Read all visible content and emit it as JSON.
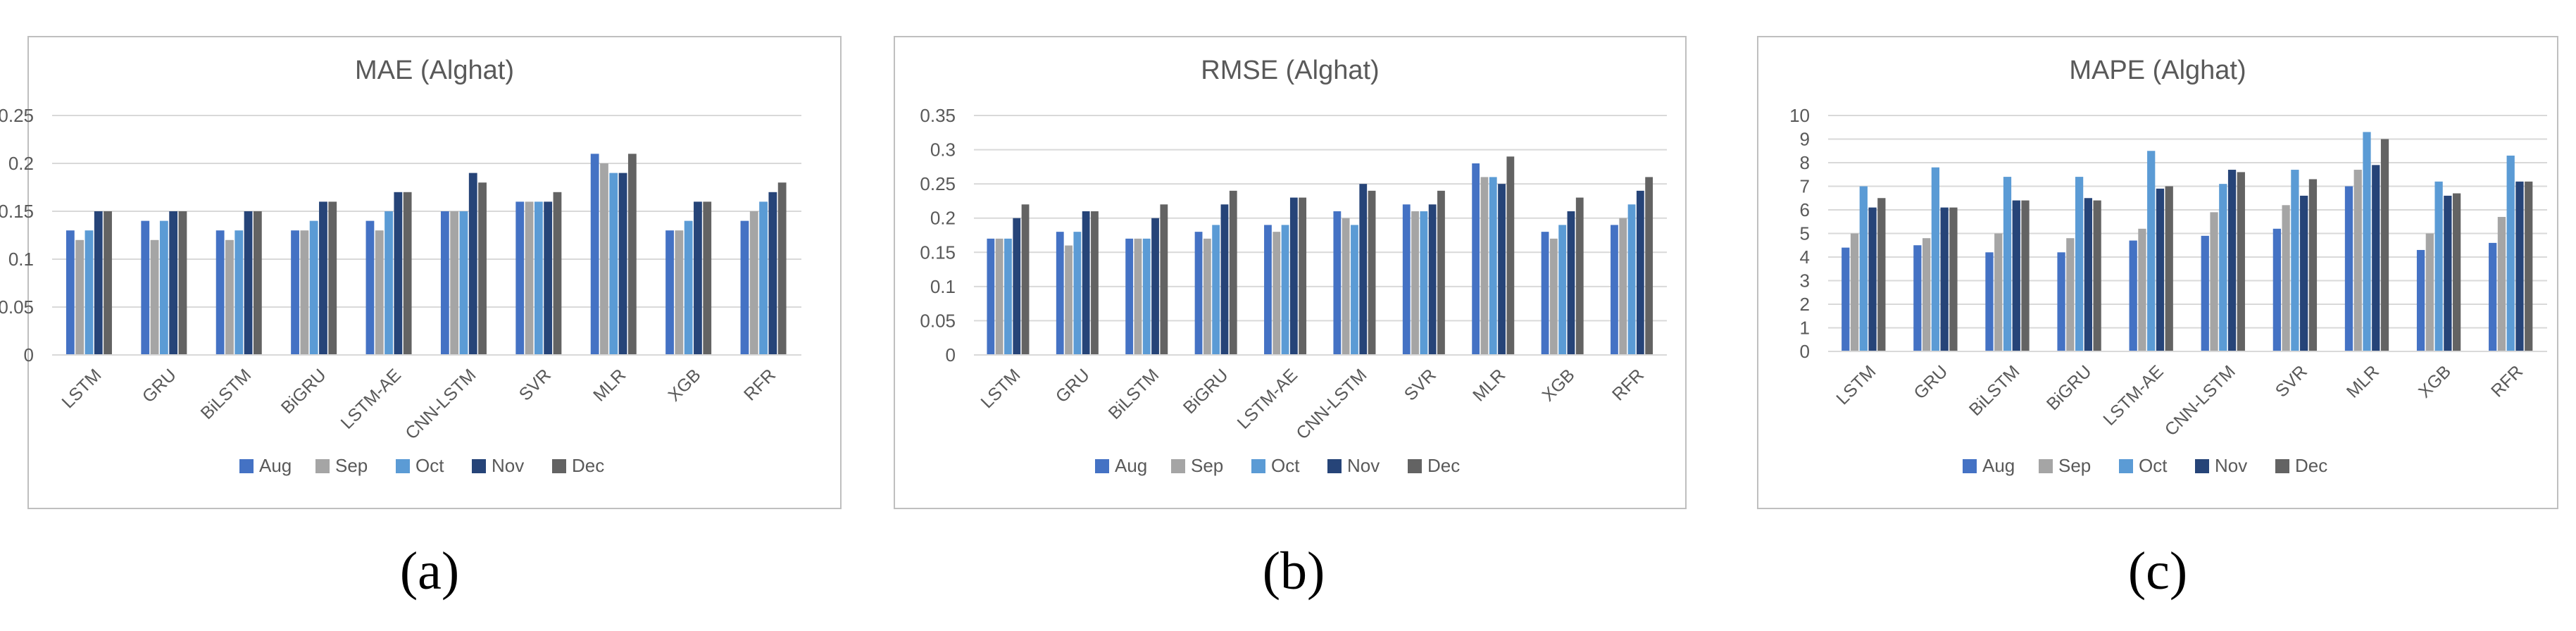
{
  "colors": {
    "Aug": "#4472C4",
    "Sep": "#A5A5A5",
    "Oct": "#5B9BD5",
    "Nov": "#264478",
    "Dec": "#636363",
    "grid": "#D9D9D9",
    "frame": "#BFBFBF",
    "text": "#595959"
  },
  "chart_data": [
    {
      "type": "bar",
      "title": "MAE (Alghat)",
      "caption": "(a)",
      "categories": [
        "LSTM",
        "GRU",
        "BiLSTM",
        "BiGRU",
        "LSTM-AE",
        "CNN-LSTM",
        "SVR",
        "MLR",
        "XGB",
        "RFR"
      ],
      "series": [
        {
          "name": "Aug",
          "values": [
            0.13,
            0.14,
            0.13,
            0.13,
            0.14,
            0.15,
            0.16,
            0.21,
            0.13,
            0.14
          ]
        },
        {
          "name": "Sep",
          "values": [
            0.12,
            0.12,
            0.12,
            0.13,
            0.13,
            0.15,
            0.16,
            0.2,
            0.13,
            0.15
          ]
        },
        {
          "name": "Oct",
          "values": [
            0.13,
            0.14,
            0.13,
            0.14,
            0.15,
            0.15,
            0.16,
            0.19,
            0.14,
            0.16
          ]
        },
        {
          "name": "Nov",
          "values": [
            0.15,
            0.15,
            0.15,
            0.16,
            0.17,
            0.19,
            0.16,
            0.19,
            0.16,
            0.17
          ]
        },
        {
          "name": "Dec",
          "values": [
            0.15,
            0.15,
            0.15,
            0.16,
            0.17,
            0.18,
            0.17,
            0.21,
            0.16,
            0.18
          ]
        }
      ],
      "yticks": [
        "0",
        "0.05",
        "0.1",
        "0.15",
        "0.2",
        "0.25"
      ],
      "ylim": [
        0,
        0.25
      ],
      "grid": true,
      "legend": "bottom",
      "xlabel": "",
      "ylabel": ""
    },
    {
      "type": "bar",
      "title": "RMSE (Alghat)",
      "caption": "(b)",
      "categories": [
        "LSTM",
        "GRU",
        "BiLSTM",
        "BiGRU",
        "LSTM-AE",
        "CNN-LSTM",
        "SVR",
        "MLR",
        "XGB",
        "RFR"
      ],
      "series": [
        {
          "name": "Aug",
          "values": [
            0.17,
            0.18,
            0.17,
            0.18,
            0.19,
            0.21,
            0.22,
            0.28,
            0.18,
            0.19
          ]
        },
        {
          "name": "Sep",
          "values": [
            0.17,
            0.16,
            0.17,
            0.17,
            0.18,
            0.2,
            0.21,
            0.26,
            0.17,
            0.2
          ]
        },
        {
          "name": "Oct",
          "values": [
            0.17,
            0.18,
            0.17,
            0.19,
            0.19,
            0.19,
            0.21,
            0.26,
            0.19,
            0.22
          ]
        },
        {
          "name": "Nov",
          "values": [
            0.2,
            0.21,
            0.2,
            0.22,
            0.23,
            0.25,
            0.22,
            0.25,
            0.21,
            0.24
          ]
        },
        {
          "name": "Dec",
          "values": [
            0.22,
            0.21,
            0.22,
            0.24,
            0.23,
            0.24,
            0.24,
            0.29,
            0.23,
            0.26
          ]
        }
      ],
      "yticks": [
        "0",
        "0.05",
        "0.1",
        "0.15",
        "0.2",
        "0.25",
        "0.3",
        "0.35"
      ],
      "ylim": [
        0,
        0.35
      ],
      "grid": true,
      "legend": "bottom",
      "xlabel": "",
      "ylabel": ""
    },
    {
      "type": "bar",
      "title": "MAPE (Alghat)",
      "caption": "(c)",
      "categories": [
        "LSTM",
        "GRU",
        "BiLSTM",
        "BiGRU",
        "LSTM-AE",
        "CNN-LSTM",
        "SVR",
        "MLR",
        "XGB",
        "RFR"
      ],
      "series": [
        {
          "name": "Aug",
          "values": [
            4.4,
            4.5,
            4.2,
            4.2,
            4.7,
            4.9,
            5.2,
            7.0,
            4.3,
            4.6
          ]
        },
        {
          "name": "Sep",
          "values": [
            5.0,
            4.8,
            5.0,
            4.8,
            5.2,
            5.9,
            6.2,
            7.7,
            5.0,
            5.7
          ]
        },
        {
          "name": "Oct",
          "values": [
            7.0,
            7.8,
            7.4,
            7.4,
            8.5,
            7.1,
            7.7,
            9.3,
            7.2,
            8.3
          ]
        },
        {
          "name": "Nov",
          "values": [
            6.1,
            6.1,
            6.4,
            6.5,
            6.9,
            7.7,
            6.6,
            7.9,
            6.6,
            7.2
          ]
        },
        {
          "name": "Dec",
          "values": [
            6.5,
            6.1,
            6.4,
            6.4,
            7.0,
            7.6,
            7.3,
            9.0,
            6.7,
            7.2
          ]
        }
      ],
      "yticks": [
        "0",
        "1",
        "2",
        "3",
        "4",
        "5",
        "6",
        "7",
        "8",
        "9",
        "10"
      ],
      "ylim": [
        0,
        10
      ],
      "grid": true,
      "legend": "bottom",
      "xlabel": "",
      "ylabel": ""
    }
  ]
}
